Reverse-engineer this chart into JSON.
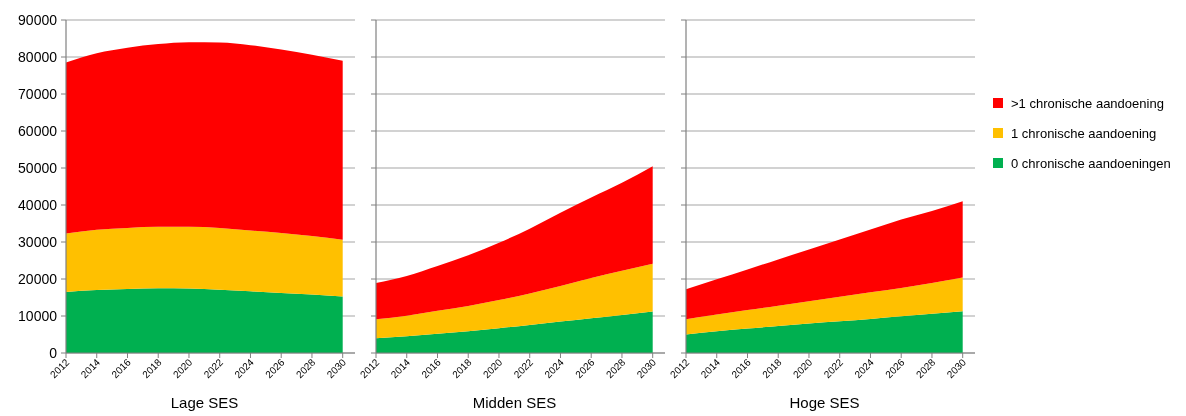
{
  "chart_data": [
    {
      "type": "area",
      "stacked": true,
      "xlabel": "Lage SES",
      "x": [
        2012,
        2014,
        2016,
        2018,
        2020,
        2022,
        2024,
        2026,
        2028,
        2030
      ],
      "xlim": [
        2012,
        2030.8
      ],
      "xticks": [
        2012,
        2014,
        2016,
        2018,
        2020,
        2022,
        2024,
        2026,
        2028,
        2030
      ],
      "ylim": [
        0,
        90000
      ],
      "yticks": [
        0,
        10000,
        20000,
        30000,
        40000,
        50000,
        60000,
        70000,
        80000,
        90000
      ],
      "grid": "y",
      "legend": false,
      "series": [
        {
          "color": "#00b050",
          "values": [
            16500,
            17000,
            17300,
            17500,
            17400,
            17100,
            16700,
            16200,
            15800,
            15300
          ]
        },
        {
          "color": "#ffc000",
          "values": [
            15800,
            16300,
            16500,
            16600,
            16700,
            16700,
            16400,
            16200,
            15800,
            15300
          ]
        },
        {
          "color": "#ff0000",
          "values": [
            46200,
            47700,
            48700,
            49400,
            49900,
            50100,
            50100,
            49600,
            49000,
            48400
          ]
        }
      ]
    },
    {
      "type": "area",
      "stacked": true,
      "xlabel": "Midden SES",
      "x": [
        2012,
        2014,
        2016,
        2018,
        2020,
        2022,
        2024,
        2026,
        2028,
        2030
      ],
      "xlim": [
        2012,
        2030.8
      ],
      "xticks": [
        2012,
        2014,
        2016,
        2018,
        2020,
        2022,
        2024,
        2026,
        2028,
        2030
      ],
      "ylim": [
        0,
        90000
      ],
      "yticks": [
        0,
        10000,
        20000,
        30000,
        40000,
        50000,
        60000,
        70000,
        80000,
        90000
      ],
      "grid": "y",
      "legend": false,
      "tick_labels": "x",
      "series": [
        {
          "color": "#00b050",
          "values": [
            4000,
            4500,
            5200,
            5900,
            6700,
            7600,
            8500,
            9400,
            10300,
            11200
          ]
        },
        {
          "color": "#ffc000",
          "values": [
            5100,
            5600,
            6200,
            6800,
            7600,
            8500,
            9600,
            10900,
            11900,
            12900
          ]
        },
        {
          "color": "#ff0000",
          "values": [
            9800,
            10700,
            12100,
            13700,
            15500,
            17500,
            19800,
            21700,
            23800,
            26400
          ]
        }
      ]
    },
    {
      "type": "area",
      "stacked": true,
      "xlabel": "Hoge SES",
      "x": [
        2012,
        2014,
        2016,
        2018,
        2020,
        2022,
        2024,
        2026,
        2028,
        2030
      ],
      "xlim": [
        2012,
        2030.8
      ],
      "xticks": [
        2012,
        2014,
        2016,
        2018,
        2020,
        2022,
        2024,
        2026,
        2028,
        2030
      ],
      "ylim": [
        0,
        90000
      ],
      "yticks": [
        0,
        10000,
        20000,
        30000,
        40000,
        50000,
        60000,
        70000,
        80000,
        90000
      ],
      "grid": "y",
      "legend": "right",
      "tick_labels": "x",
      "series": [
        {
          "name": "0 chronische aandoeningen",
          "color": "#00b050",
          "values": [
            5000,
            5900,
            6600,
            7300,
            8000,
            8600,
            9200,
            9900,
            10600,
            11300
          ]
        },
        {
          "name": "1 chronische aandoening",
          "color": "#ffc000",
          "values": [
            4100,
            4500,
            5000,
            5500,
            6000,
            6600,
            7200,
            7700,
            8300,
            9100
          ]
        },
        {
          "name": ">1 chronische aandoening",
          "color": "#ff0000",
          "values": [
            8100,
            9500,
            11000,
            12500,
            14000,
            15500,
            17000,
            18500,
            19500,
            20600
          ]
        }
      ]
    }
  ]
}
